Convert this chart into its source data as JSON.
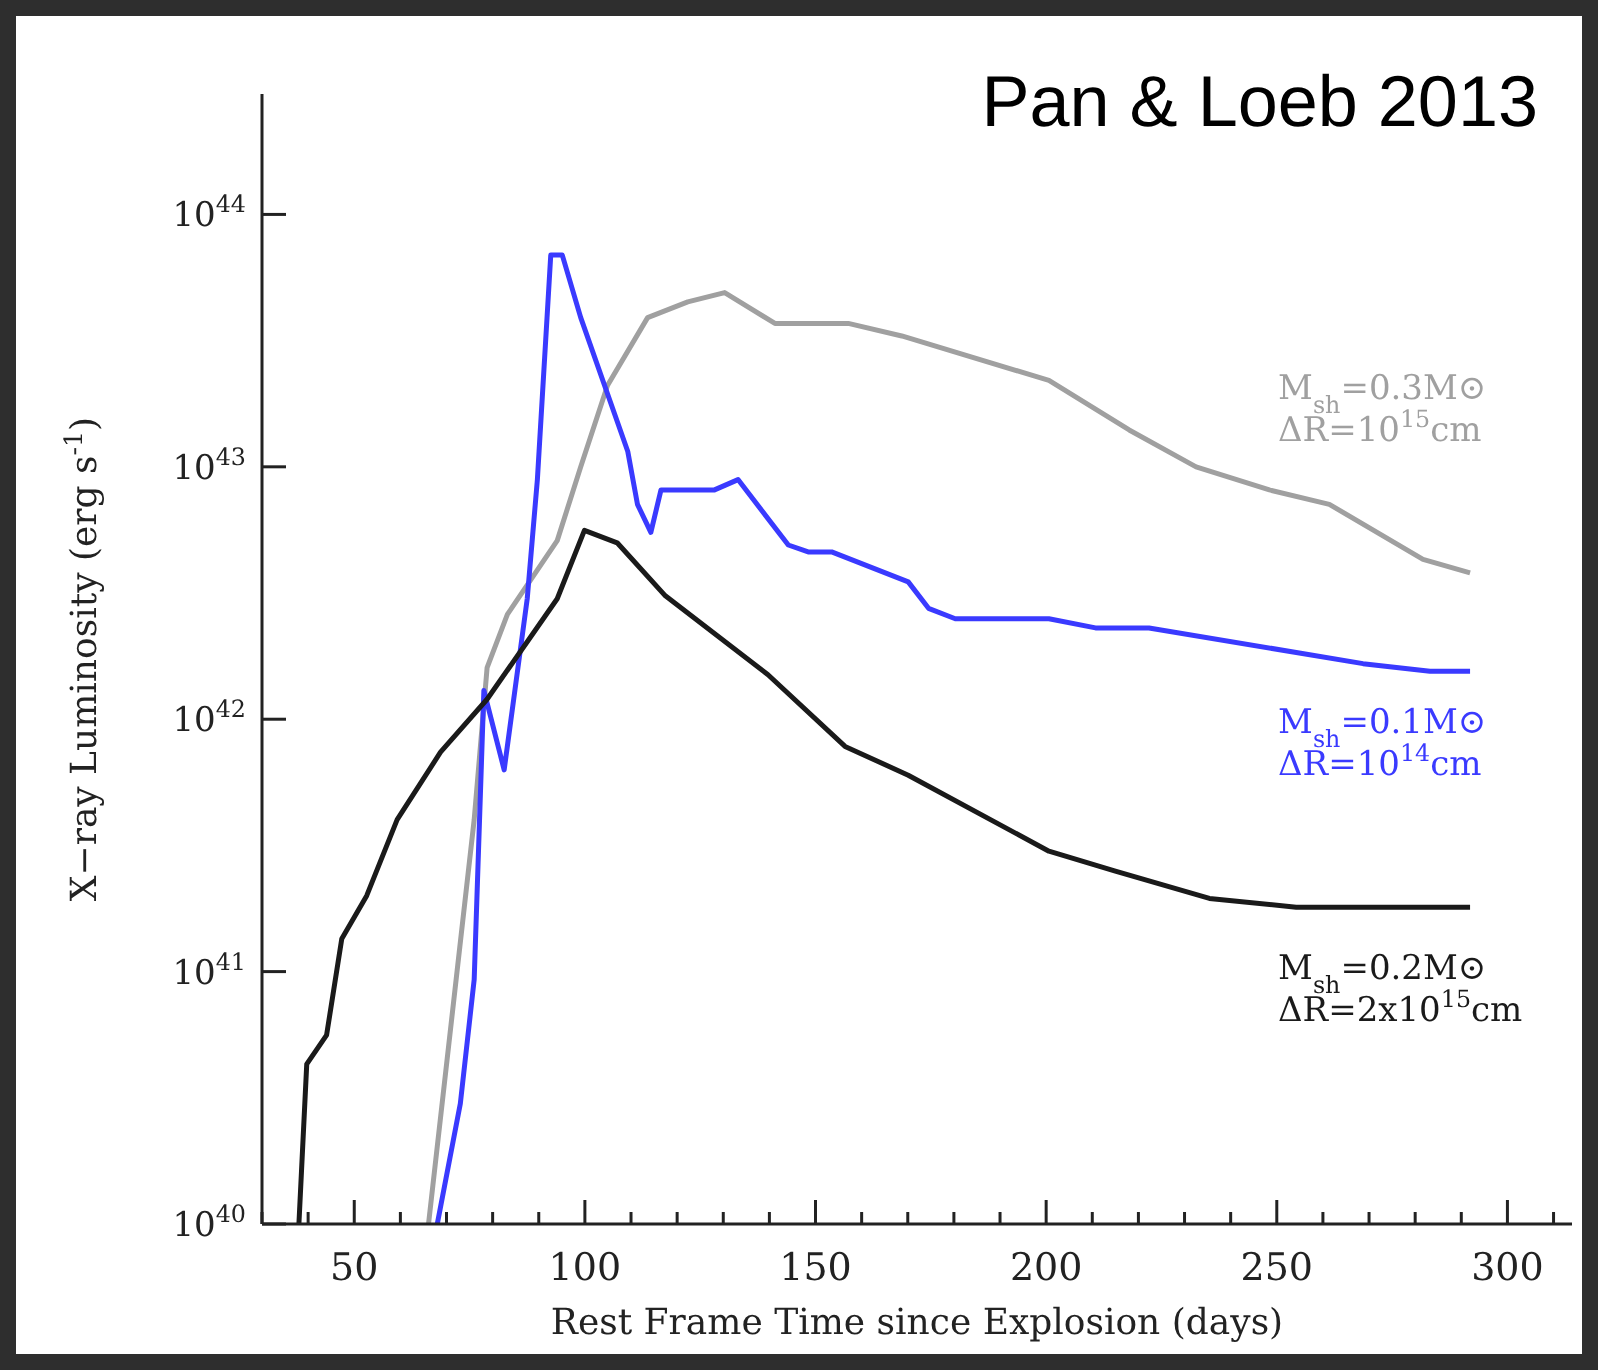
{
  "chart_data": {
    "type": "line",
    "xlabel": "Rest Frame Time since Explosion (days)",
    "ylabel": "X−ray Luminosity (erg s$^{-1}$)",
    "annotations": [
      "Pan & Loeb 2013"
    ],
    "log": "y",
    "grid": false,
    "legend": false,
    "marker": "none",
    "line_style": "solid",
    "xlim": [
      30,
      314
    ],
    "xticks": [
      {
        "value": 30,
        "label": null
      },
      {
        "value": 40,
        "label": null
      },
      50,
      {
        "value": 60,
        "label": null
      },
      {
        "value": 70,
        "label": null
      },
      {
        "value": 80,
        "label": null
      },
      {
        "value": 90,
        "label": null
      },
      100,
      {
        "value": 110,
        "label": null
      },
      {
        "value": 120,
        "label": null
      },
      {
        "value": 130,
        "label": null
      },
      {
        "value": 140,
        "label": null
      },
      150,
      {
        "value": 160,
        "label": null
      },
      {
        "value": 170,
        "label": null
      },
      {
        "value": 180,
        "label": null
      },
      {
        "value": 190,
        "label": null
      },
      200,
      {
        "value": 210,
        "label": null
      },
      {
        "value": 220,
        "label": null
      },
      {
        "value": 230,
        "label": null
      },
      {
        "value": 240,
        "label": null
      },
      250,
      {
        "value": 260,
        "label": null
      },
      {
        "value": 270,
        "label": null
      },
      {
        "value": 280,
        "label": null
      },
      {
        "value": 290,
        "label": null
      },
      300,
      {
        "value": 310,
        "label": null
      }
    ],
    "ylim": [
      1e+40,
      3e+44
    ],
    "yticks": [
      {
        "value": 1e+40,
        "label": "10$^{40}$"
      },
      {
        "value": 1e+41,
        "label": "10$^{41}$"
      },
      {
        "value": 1e+42,
        "label": "10$^{42}$"
      },
      {
        "value": 1e+43,
        "label": "10$^{43}$"
      },
      {
        "value": 1e+44,
        "label": "10$^{44}$"
      }
    ],
    "series": [
      {
        "name": "M$_{sh}$=0.3M⊙\nΔR=10$^{15}$cm",
        "color": "#a0a0a0",
        "x": [
          66.1,
          76,
          78.8,
          83.2,
          94,
          99.1,
          104.9,
          113.6,
          122.3,
          130.3,
          141.2,
          157.1,
          168.7,
          200.6,
          218,
          232.5,
          248.4,
          261.4,
          281.7,
          291.9
        ],
        "values": [
          1e+40,
          4e+41,
          1.6e+42,
          2.6e+42,
          5.1e+42,
          1e+43,
          2.1e+43,
          3.9e+43,
          4.5e+43,
          4.9e+43,
          3.7e+43,
          3.7e+43,
          3.3e+43,
          2.2e+43,
          1.4e+43,
          1e+43,
          8.1e+42,
          7.1e+42,
          4.3e+42,
          3.8e+42
        ]
      },
      {
        "name": "M$_{sh}$=0.1M⊙\nΔR=10$^{14}$cm",
        "color": "#3a3aff",
        "x": [
          68,
          73,
          76,
          78.1,
          82.5,
          87.5,
          89.7,
          92.6,
          95.1,
          99.1,
          109.3,
          111.4,
          114.3,
          116.5,
          128.1,
          133.2,
          144.1,
          148.4,
          153.5,
          170.1,
          174.5,
          180.3,
          200.6,
          210.7,
          222.3,
          268.7,
          283.2,
          291.9
        ],
        "values": [
          1e+40,
          3e+40,
          9.3e+40,
          1.3e+42,
          6.3e+41,
          3e+42,
          8.9e+42,
          6.9e+43,
          6.9e+43,
          3.9e+43,
          1.15e+43,
          7.1e+42,
          5.5e+42,
          8.1e+42,
          8.1e+42,
          8.9e+42,
          4.9e+42,
          4.6e+42,
          4.6e+42,
          3.5e+42,
          2.75e+42,
          2.5e+42,
          2.5e+42,
          2.3e+42,
          2.3e+42,
          1.66e+42,
          1.55e+42,
          1.55e+42
        ]
      },
      {
        "name": "M$_{sh}$=0.2M⊙\nΔR=2x10$^{15}$cm",
        "color": "#1a1a1a",
        "x": [
          38,
          39.7,
          44,
          47.3,
          52.7,
          59.3,
          68.7,
          78.8,
          94,
          99.9,
          107,
          117.3,
          139.7,
          156.4,
          170.1,
          200.6,
          215,
          235.4,
          254.2,
          291.9
        ],
        "values": [
          1e+40,
          4.3e+40,
          5.6e+40,
          1.35e+41,
          2e+41,
          4e+41,
          7.4e+41,
          1.2e+42,
          3e+42,
          5.6e+42,
          5e+42,
          3.1e+42,
          1.5e+42,
          7.8e+41,
          6e+41,
          3e+41,
          2.5e+41,
          1.95e+41,
          1.8e+41,
          1.8e+41
        ]
      }
    ]
  }
}
